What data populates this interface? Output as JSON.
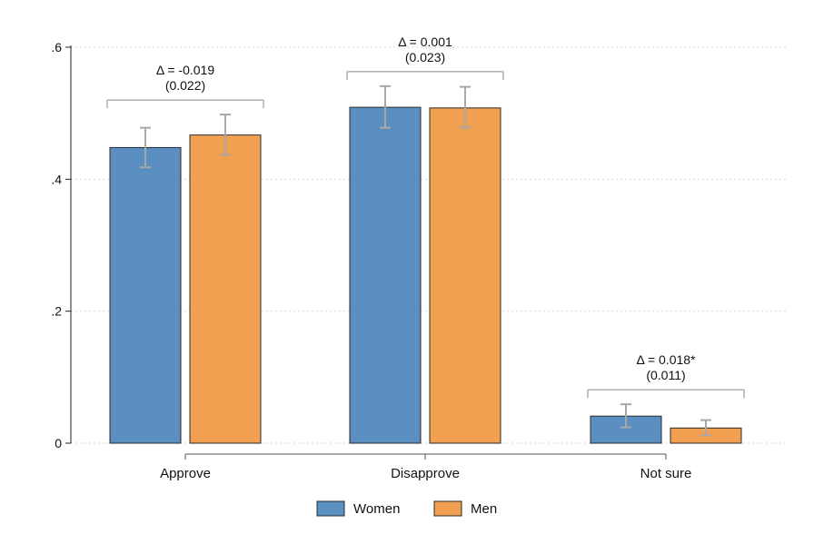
{
  "chart_data": {
    "type": "bar",
    "categories": [
      "Approve",
      "Disapprove",
      "Not sure"
    ],
    "series": [
      {
        "name": "Women",
        "color": "#5b8fc1",
        "values": [
          0.448,
          0.509,
          0.041
        ],
        "ci_low": [
          0.418,
          0.478,
          0.024
        ],
        "ci_high": [
          0.478,
          0.541,
          0.059
        ]
      },
      {
        "name": "Men",
        "color": "#f0a050",
        "values": [
          0.467,
          0.508,
          0.023
        ],
        "ci_low": [
          0.437,
          0.478,
          0.012
        ],
        "ci_high": [
          0.498,
          0.54,
          0.035
        ]
      }
    ],
    "annotations": [
      {
        "category": "Approve",
        "delta": "Δ = -0.019",
        "se": "(0.022)"
      },
      {
        "category": "Disapprove",
        "delta": "Δ = 0.001",
        "se": "(0.023)"
      },
      {
        "category": "Not sure",
        "delta": "Δ = 0.018*",
        "se": "(0.011)"
      }
    ],
    "yticks": [
      {
        "value": 0,
        "label": "0"
      },
      {
        "value": 0.2,
        "label": ".2"
      },
      {
        "value": 0.4,
        "label": ".4"
      },
      {
        "value": 0.6,
        "label": ".6"
      }
    ],
    "ylim": [
      0,
      0.6
    ],
    "grid": true,
    "legend_position": "bottom-center",
    "title": "",
    "xlabel": "",
    "ylabel": ""
  }
}
